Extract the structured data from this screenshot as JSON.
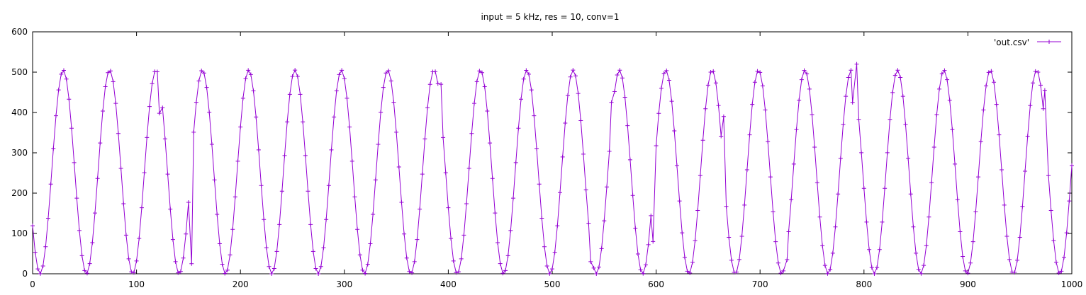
{
  "chart_data": {
    "type": "line",
    "title": "input = 5 kHz, res = 10, conv=1",
    "xlabel": "",
    "ylabel": "",
    "xlim": [
      0,
      1000
    ],
    "ylim": [
      0,
      600
    ],
    "x_ticks": [
      "0",
      "100",
      "200",
      "300",
      "400",
      "500",
      "600",
      "700",
      "800",
      "900",
      "1000"
    ],
    "y_ticks": [
      "0",
      "100",
      "200",
      "300",
      "400",
      "500",
      "600"
    ],
    "grid": false,
    "legend_position": "top-right",
    "series": [
      {
        "name": "'out.csv'",
        "color": "#9400d3",
        "marker": "plus",
        "waveform": {
          "kind": "cosine",
          "period": 44.6,
          "min": 0,
          "max": 505,
          "first_peak_x": 29.5,
          "sample_spacing": 2.5,
          "x_range": [
            0,
            1000
          ]
        },
        "outliers": [
          {
            "x": 122,
            "y": 398
          },
          {
            "x": 153,
            "y": 25
          },
          {
            "x": 393,
            "y": 470
          },
          {
            "x": 537,
            "y": 30
          },
          {
            "x": 557,
            "y": 425
          },
          {
            "x": 597,
            "y": 80
          },
          {
            "x": 665,
            "y": 390
          },
          {
            "x": 726,
            "y": 35
          },
          {
            "x": 789,
            "y": 425
          },
          {
            "x": 793,
            "y": 520
          },
          {
            "x": 974,
            "y": 455
          }
        ]
      }
    ]
  }
}
